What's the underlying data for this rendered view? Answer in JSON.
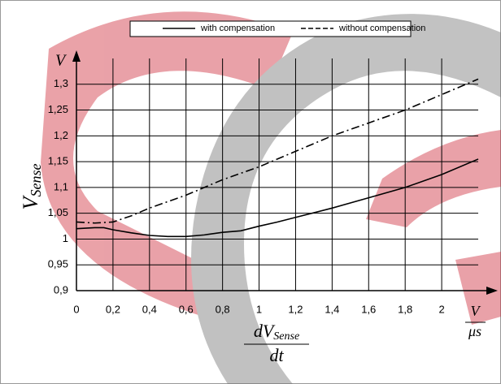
{
  "chart_data": {
    "type": "line",
    "x_label_numerator": "dV",
    "x_label_numerator_sub": "Sense",
    "x_label_denominator": "dt",
    "x_unit_numerator": "V",
    "x_unit_denominator": "μs",
    "y_label": "V",
    "y_label_sub": "Sense",
    "y_unit": "V",
    "xlim": [
      0,
      2.2
    ],
    "ylim": [
      0.9,
      1.35
    ],
    "xticks": [
      0,
      {
        "value": 0.2,
        "label": "0,2"
      },
      {
        "value": 0.4,
        "label": "0,4"
      },
      {
        "value": 0.6,
        "label": "0,6"
      },
      {
        "value": 0.8,
        "label": "0,8"
      },
      1,
      {
        "value": 1.2,
        "label": "1,2"
      },
      {
        "value": 1.4,
        "label": "1,4"
      },
      {
        "value": 1.6,
        "label": "1,6"
      },
      {
        "value": 1.8,
        "label": "1,8"
      },
      2
    ],
    "yticks": [
      {
        "value": 0.9,
        "label": "0,9"
      },
      {
        "value": 0.95,
        "label": "0,95"
      },
      1,
      {
        "value": 1.05,
        "label": "1,05"
      },
      {
        "value": 1.1,
        "label": "1,1"
      },
      {
        "value": 1.15,
        "label": "1,15"
      },
      {
        "value": 1.2,
        "label": "1,2"
      },
      {
        "value": 1.25,
        "label": "1,25"
      },
      {
        "value": 1.3,
        "label": "1,3"
      }
    ],
    "grid": true,
    "series": [
      {
        "name": "with compensation",
        "color": "#000000",
        "dash": "solid",
        "x": [
          0,
          0.1,
          0.15,
          0.2,
          0.3,
          0.4,
          0.5,
          0.6,
          0.7,
          0.8,
          0.9,
          1.0,
          1.1,
          1.2,
          1.4,
          1.6,
          1.8,
          2.0,
          2.2
        ],
        "values": [
          1.02,
          1.022,
          1.022,
          1.018,
          1.012,
          1.007,
          1.005,
          1.005,
          1.008,
          1.013,
          1.016,
          1.025,
          1.033,
          1.042,
          1.06,
          1.08,
          1.1,
          1.125,
          1.155
        ]
      },
      {
        "name": "without compensation",
        "color": "#000000",
        "dash": "dashdot",
        "x": [
          0,
          0.1,
          0.2,
          0.3,
          0.4,
          0.6,
          0.8,
          1.0,
          1.2,
          1.4,
          1.6,
          1.8,
          2.0,
          2.2
        ],
        "values": [
          1.033,
          1.031,
          1.033,
          1.045,
          1.06,
          1.085,
          1.115,
          1.14,
          1.17,
          1.2,
          1.225,
          1.25,
          1.28,
          1.31
        ]
      }
    ]
  }
}
